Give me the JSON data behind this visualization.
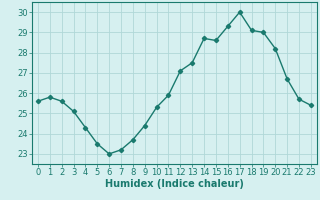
{
  "x": [
    0,
    1,
    2,
    3,
    4,
    5,
    6,
    7,
    8,
    9,
    10,
    11,
    12,
    13,
    14,
    15,
    16,
    17,
    18,
    19,
    20,
    21,
    22,
    23
  ],
  "y": [
    25.6,
    25.8,
    25.6,
    25.1,
    24.3,
    23.5,
    23.0,
    23.2,
    23.7,
    24.4,
    25.3,
    25.9,
    27.1,
    27.5,
    28.7,
    28.6,
    29.3,
    30.0,
    29.1,
    29.0,
    28.2,
    26.7,
    25.7,
    25.4
  ],
  "line_color": "#1a7a6e",
  "marker": "D",
  "marker_size": 2.2,
  "line_width": 1.0,
  "bg_color": "#d6f0f0",
  "grid_color": "#b0d8d8",
  "xlabel": "Humidex (Indice chaleur)",
  "xlabel_fontsize": 7,
  "tick_fontsize": 6,
  "ylim": [
    22.5,
    30.5
  ],
  "xlim": [
    -0.5,
    23.5
  ],
  "yticks": [
    23,
    24,
    25,
    26,
    27,
    28,
    29,
    30
  ],
  "xticks": [
    0,
    1,
    2,
    3,
    4,
    5,
    6,
    7,
    8,
    9,
    10,
    11,
    12,
    13,
    14,
    15,
    16,
    17,
    18,
    19,
    20,
    21,
    22,
    23
  ]
}
